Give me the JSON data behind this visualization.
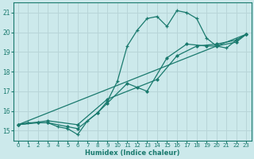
{
  "xlabel": "Humidex (Indice chaleur)",
  "ylabel": "",
  "bg_color": "#cce9eb",
  "grid_color": "#b8d5d8",
  "line_color": "#1a7a6e",
  "xlim": [
    -0.5,
    23.5
  ],
  "ylim": [
    14.5,
    21.5
  ],
  "yticks": [
    15,
    16,
    17,
    18,
    19,
    20,
    21
  ],
  "xticks": [
    0,
    1,
    2,
    3,
    4,
    5,
    6,
    7,
    8,
    9,
    10,
    11,
    12,
    13,
    14,
    15,
    16,
    17,
    18,
    19,
    20,
    21,
    22,
    23
  ],
  "line1_x": [
    0,
    1,
    2,
    3,
    4,
    5,
    6,
    7,
    8,
    9,
    10,
    11,
    12,
    13,
    14,
    15,
    16,
    17,
    18,
    19,
    20,
    21,
    22,
    23
  ],
  "line1_y": [
    15.3,
    15.4,
    15.4,
    15.4,
    15.2,
    15.1,
    14.8,
    15.5,
    15.9,
    16.5,
    17.5,
    19.3,
    20.1,
    20.7,
    20.8,
    20.3,
    21.1,
    21.0,
    20.7,
    19.7,
    19.3,
    19.2,
    19.6,
    19.9
  ],
  "line2_x": [
    0,
    2,
    3,
    5,
    6,
    8,
    9,
    11,
    13,
    15,
    17,
    19,
    20,
    22,
    23
  ],
  "line2_y": [
    15.3,
    15.4,
    15.4,
    15.2,
    15.1,
    15.9,
    16.4,
    17.4,
    17.0,
    18.7,
    19.4,
    19.3,
    19.3,
    19.5,
    19.9
  ],
  "line3_x": [
    0,
    23
  ],
  "line3_y": [
    15.3,
    19.9
  ],
  "line4_x": [
    0,
    3,
    6,
    9,
    12,
    14,
    16,
    18,
    20,
    22,
    23
  ],
  "line4_y": [
    15.3,
    15.5,
    15.3,
    16.6,
    17.2,
    17.6,
    18.8,
    19.3,
    19.4,
    19.6,
    19.9
  ]
}
